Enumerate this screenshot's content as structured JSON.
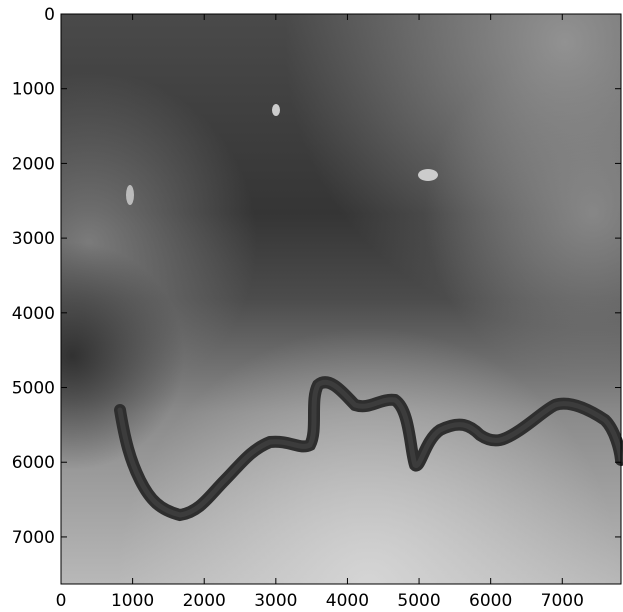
{
  "chart_data": {
    "type": "image",
    "colormap": "gray",
    "xlim": [
      0,
      7820
    ],
    "ylim": [
      7630,
      0
    ],
    "xticks": [
      0,
      1000,
      2000,
      3000,
      4000,
      5000,
      6000,
      7000
    ],
    "yticks": [
      0,
      1000,
      2000,
      3000,
      4000,
      5000,
      6000,
      7000
    ]
  }
}
